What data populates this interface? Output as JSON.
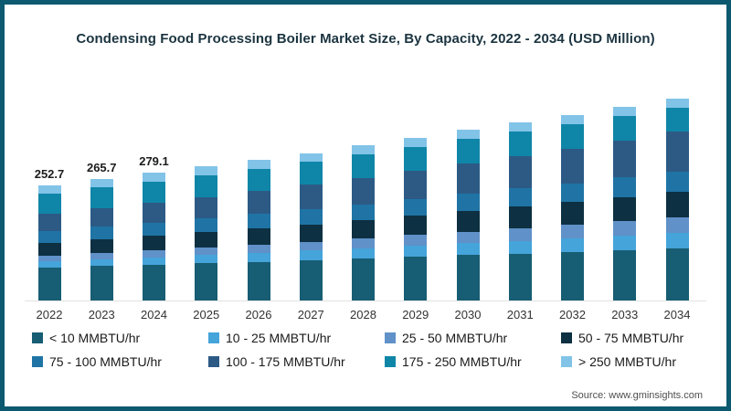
{
  "page": {
    "frame_border_color": "#0d5a70",
    "background_color": "#ffffff"
  },
  "header": {
    "title": "Condensing Food Processing Boiler Market Size, By Capacity, 2022 - 2034 (USD Million)"
  },
  "footer": {
    "source": "Source: www.gminsights.com"
  },
  "chart_data": {
    "type": "bar",
    "stacked": true,
    "title": "Condensing Food Processing Boiler Market Size, By Capacity, 2022 - 2034 (USD Million)",
    "unit": "USD Million",
    "xlabel": "",
    "ylabel": "",
    "ylim": [
      0,
      460
    ],
    "grid": "baseline-only",
    "legend_position": "bottom",
    "categories": [
      "2022",
      "2023",
      "2024",
      "2025",
      "2026",
      "2027",
      "2028",
      "2029",
      "2030",
      "2031",
      "2032",
      "2033",
      "2034"
    ],
    "totals": [
      252.7,
      265.7,
      279.1,
      293.2,
      307.8,
      323.1,
      339.2,
      356.0,
      373.2,
      389.5,
      405.6,
      423.8,
      442.6
    ],
    "value_labels": [
      "252.7",
      "265.7",
      "279.1",
      "",
      "",
      "",
      "",
      "",
      "",
      "",
      "",
      "",
      ""
    ],
    "series": [
      {
        "name": "< 10 MMBTU/hr",
        "color": "#175d73",
        "values": [
          72.1,
          75.2,
          78.2,
          81.6,
          84.9,
          88.4,
          92.1,
          96.0,
          99.6,
          102.9,
          106.4,
          110.1,
          114.1
        ]
      },
      {
        "name": "10 - 25 MMBTU/hr",
        "color": "#45a4da",
        "values": [
          13.9,
          15.1,
          16.4,
          17.7,
          19.2,
          20.7,
          22.4,
          24.1,
          26.0,
          27.9,
          29.7,
          31.9,
          34.1
        ]
      },
      {
        "name": "25 - 50 MMBTU/hr",
        "color": "#6091c8",
        "values": [
          12.6,
          13.9,
          15.2,
          16.6,
          18.2,
          19.8,
          21.5,
          23.4,
          25.4,
          27.4,
          29.4,
          31.7,
          34.1
        ]
      },
      {
        "name": "50 - 75 MMBTU/hr",
        "color": "#0d3042",
        "values": [
          27.8,
          29.6,
          31.5,
          33.5,
          35.6,
          37.8,
          40.2,
          42.7,
          45.3,
          47.8,
          50.4,
          53.2,
          56.2
        ]
      },
      {
        "name": "75 - 100 MMBTU/hr",
        "color": "#1f74a5",
        "values": [
          26.5,
          27.8,
          29.1,
          30.4,
          31.8,
          33.3,
          34.8,
          36.3,
          38.0,
          39.5,
          40.9,
          42.6,
          44.3
        ]
      },
      {
        "name": "100 - 175 MMBTU/hr",
        "color": "#2c5a85",
        "values": [
          36.6,
          39.6,
          42.8,
          46.2,
          49.8,
          53.6,
          57.7,
          62.0,
          66.5,
          71.1,
          75.7,
          80.9,
          86.3
        ]
      },
      {
        "name": "175 - 250 MMBTU/hr",
        "color": "#0f86a7",
        "values": [
          45.5,
          46.5,
          47.5,
          48.5,
          49.3,
          50.2,
          51.0,
          51.8,
          52.5,
          52.9,
          53.1,
          53.4,
          53.6
        ]
      },
      {
        "name": "> 250 MMBTU/hr",
        "color": "#82c3e8",
        "values": [
          17.7,
          18.0,
          18.4,
          18.7,
          19.0,
          19.3,
          19.5,
          19.7,
          19.9,
          20.0,
          20.0,
          20.0,
          19.9
        ]
      }
    ]
  }
}
